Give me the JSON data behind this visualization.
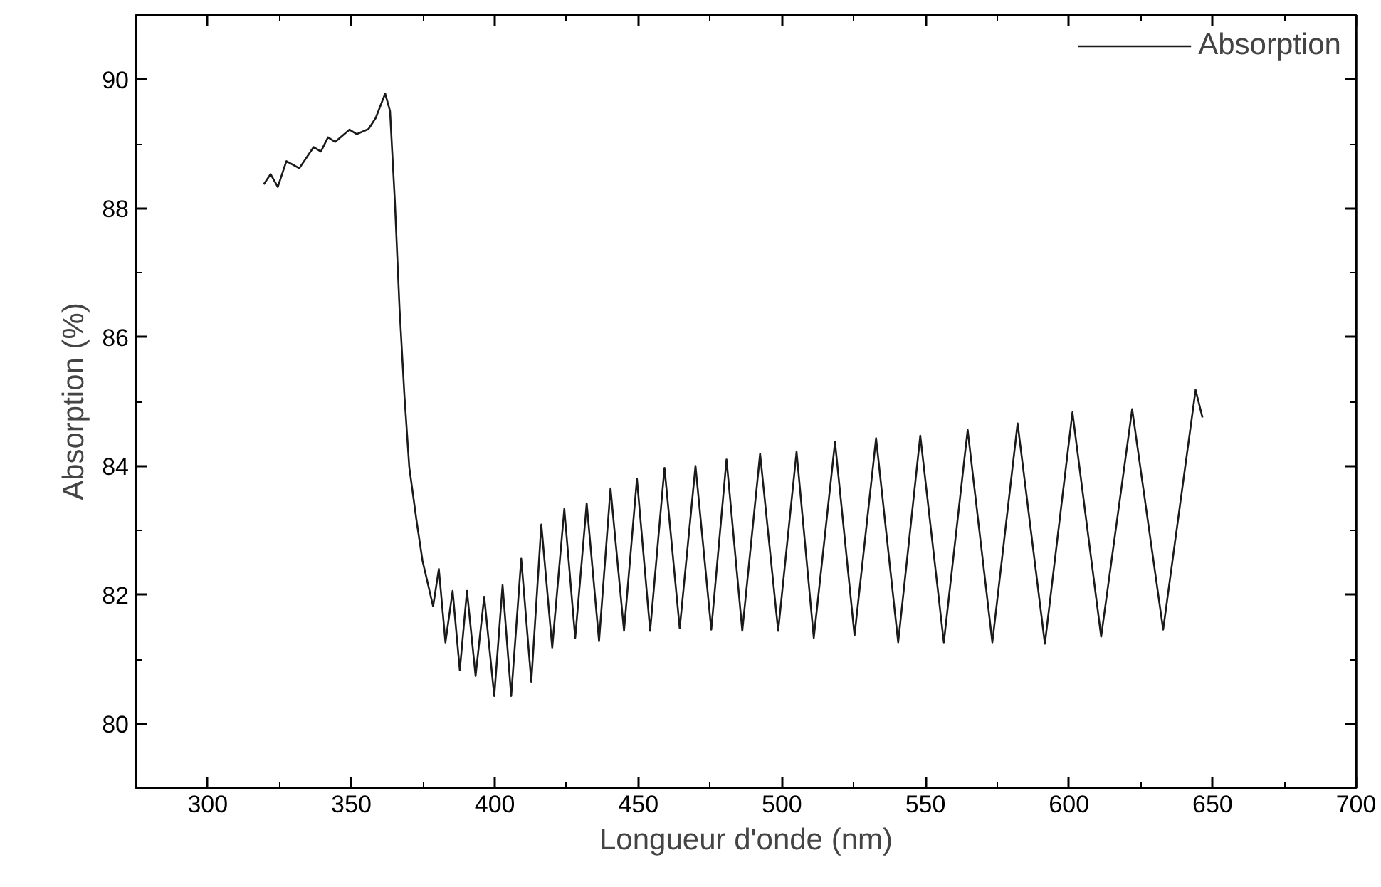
{
  "chart_data": {
    "type": "line",
    "xlabel": "Longueur d'onde (nm)",
    "ylabel": "Absorption (%)",
    "xlim": [
      275,
      700
    ],
    "ylim": [
      79,
      91
    ],
    "xticks": [
      300,
      350,
      400,
      450,
      500,
      550,
      600,
      650,
      700
    ],
    "yticks": [
      80,
      82,
      84,
      86,
      88,
      90
    ],
    "grid": false,
    "legend": "top right",
    "marker": "none",
    "line_style": "solid",
    "series": [
      {
        "name": "Absorption",
        "color": "#1a1a1a",
        "x": [
          319.5,
          321.9,
          324.4,
          327.4,
          331.9,
          336.9,
          339.4,
          341.9,
          344.4,
          349.4,
          351.9,
          356.0,
          358.5,
          361.8,
          363.5,
          365.2,
          366.8,
          368.5,
          370.2,
          372.7,
          374.8,
          378.5,
          380.5,
          382.8,
          385.3,
          387.8,
          390.3,
          393.3,
          396.3,
          399.8,
          402.7,
          405.7,
          409.2,
          412.7,
          416.2,
          420.0,
          424.2,
          428.0,
          432.0,
          436.3,
          440.3,
          445.0,
          449.5,
          454.1,
          459.1,
          464.4,
          469.9,
          475.4,
          480.7,
          486.2,
          492.4,
          498.7,
          505.1,
          511.1,
          518.5,
          525.3,
          532.8,
          540.5,
          548.2,
          556.4,
          564.7,
          573.3,
          582.1,
          591.6,
          601.2,
          611.2,
          622.0,
          632.8,
          644.1,
          646.5
        ],
        "values": [
          88.37,
          88.53,
          88.33,
          88.73,
          88.62,
          88.95,
          88.88,
          89.1,
          89.03,
          89.22,
          89.15,
          89.23,
          89.4,
          89.78,
          89.51,
          88.09,
          86.45,
          85.1,
          83.98,
          83.16,
          82.53,
          81.82,
          82.4,
          81.26,
          82.06,
          80.83,
          82.06,
          80.74,
          81.97,
          80.43,
          82.15,
          80.43,
          82.56,
          80.65,
          83.09,
          81.18,
          83.33,
          81.33,
          83.42,
          81.28,
          83.65,
          81.44,
          83.8,
          81.44,
          83.97,
          81.48,
          84.0,
          81.46,
          84.1,
          81.44,
          84.19,
          81.44,
          84.22,
          81.33,
          84.37,
          81.37,
          84.43,
          81.26,
          84.47,
          81.26,
          84.56,
          81.26,
          84.66,
          81.24,
          84.83,
          81.35,
          84.88,
          81.46,
          85.18,
          84.75
        ]
      }
    ]
  }
}
